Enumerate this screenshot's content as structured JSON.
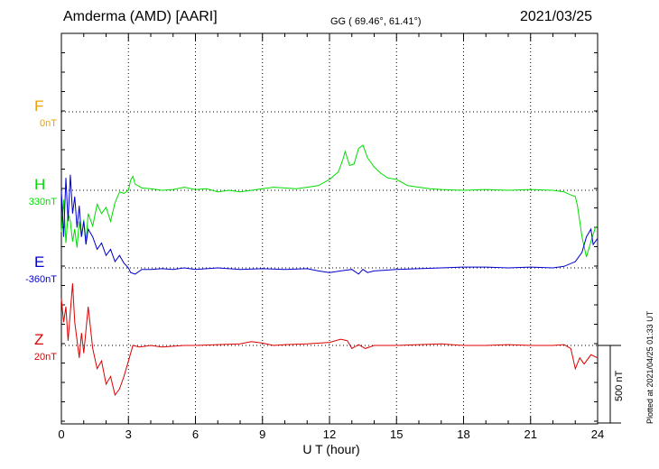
{
  "header": {
    "station": "Amderma (AMD)  [AARI]",
    "coords": "GG ( 69.46°,  61.41°)",
    "date": "2021/03/25"
  },
  "footer_note": "Plotted at 2021/04/25 01:33 UT",
  "scale_bar_label": "500 nT",
  "colors": {
    "F": "#f0a000",
    "H": "#00dd00",
    "E": "#0000cc",
    "Z": "#dd0000"
  },
  "chart_data": {
    "type": "line",
    "xlabel": "U T (hour)",
    "xlim": [
      0,
      24
    ],
    "x_ticks": [
      0,
      3,
      6,
      9,
      12,
      15,
      18,
      21,
      24
    ],
    "x_tick_labels": [
      "0",
      "3",
      "6",
      "9",
      "12",
      "15",
      "18",
      "21",
      "24"
    ],
    "grid": true,
    "units": "nT",
    "scale_bar_nT": 500,
    "components": [
      {
        "name": "F",
        "baseline_label": "0nT",
        "baseline_nT": 0,
        "points": []
      },
      {
        "name": "H",
        "baseline_label": "330nT",
        "baseline_nT": 330,
        "points": [
          [
            0,
            -270
          ],
          [
            0.1,
            -60
          ],
          [
            0.2,
            -340
          ],
          [
            0.3,
            -150
          ],
          [
            0.4,
            -200
          ],
          [
            0.5,
            -330
          ],
          [
            0.6,
            -250
          ],
          [
            0.7,
            -370
          ],
          [
            0.8,
            -200
          ],
          [
            0.9,
            -300
          ],
          [
            1.0,
            -190
          ],
          [
            1.1,
            -330
          ],
          [
            1.2,
            -150
          ],
          [
            1.4,
            -230
          ],
          [
            1.6,
            -90
          ],
          [
            1.8,
            -150
          ],
          [
            2.0,
            -110
          ],
          [
            2.2,
            -200
          ],
          [
            2.4,
            -80
          ],
          [
            2.6,
            -10
          ],
          [
            2.8,
            -20
          ],
          [
            3.0,
            0
          ],
          [
            3.1,
            65
          ],
          [
            3.2,
            90
          ],
          [
            3.3,
            40
          ],
          [
            3.6,
            15
          ],
          [
            4,
            10
          ],
          [
            4.5,
            0
          ],
          [
            5,
            5
          ],
          [
            5.5,
            20
          ],
          [
            6,
            5
          ],
          [
            6.5,
            10
          ],
          [
            7,
            -10
          ],
          [
            7.5,
            0
          ],
          [
            8,
            -10
          ],
          [
            8.5,
            0
          ],
          [
            9,
            10
          ],
          [
            9.5,
            20
          ],
          [
            10,
            15
          ],
          [
            10.5,
            10
          ],
          [
            11,
            20
          ],
          [
            11.5,
            30
          ],
          [
            12,
            70
          ],
          [
            12.4,
            120
          ],
          [
            12.6,
            200
          ],
          [
            12.7,
            250
          ],
          [
            12.9,
            160
          ],
          [
            13.1,
            170
          ],
          [
            13.3,
            270
          ],
          [
            13.5,
            290
          ],
          [
            13.7,
            210
          ],
          [
            14,
            150
          ],
          [
            14.3,
            110
          ],
          [
            14.6,
            80
          ],
          [
            15,
            70
          ],
          [
            15.5,
            30
          ],
          [
            16,
            20
          ],
          [
            16.5,
            10
          ],
          [
            17,
            5
          ],
          [
            18,
            0
          ],
          [
            19,
            5
          ],
          [
            20,
            0
          ],
          [
            21,
            5
          ],
          [
            22,
            0
          ],
          [
            22.5,
            -10
          ],
          [
            22.8,
            -30
          ],
          [
            23,
            -40
          ],
          [
            23.1,
            -100
          ],
          [
            23.3,
            -300
          ],
          [
            23.5,
            -430
          ],
          [
            23.7,
            -330
          ],
          [
            23.9,
            -240
          ],
          [
            24,
            -230
          ]
        ]
      },
      {
        "name": "E",
        "baseline_label": "-360nT",
        "baseline_nT": -360,
        "points": [
          [
            0,
            500
          ],
          [
            0.1,
            200
          ],
          [
            0.2,
            580
          ],
          [
            0.3,
            300
          ],
          [
            0.4,
            600
          ],
          [
            0.5,
            350
          ],
          [
            0.6,
            460
          ],
          [
            0.7,
            260
          ],
          [
            0.8,
            400
          ],
          [
            0.9,
            200
          ],
          [
            1.0,
            300
          ],
          [
            1.1,
            150
          ],
          [
            1.2,
            250
          ],
          [
            1.4,
            200
          ],
          [
            1.6,
            120
          ],
          [
            1.8,
            160
          ],
          [
            2.0,
            80
          ],
          [
            2.2,
            120
          ],
          [
            2.4,
            40
          ],
          [
            2.6,
            80
          ],
          [
            2.8,
            30
          ],
          [
            3.0,
            0
          ],
          [
            3.1,
            -30
          ],
          [
            3.3,
            -40
          ],
          [
            3.6,
            -10
          ],
          [
            4,
            -10
          ],
          [
            4.5,
            -5
          ],
          [
            5,
            -10
          ],
          [
            5.5,
            0
          ],
          [
            6,
            -10
          ],
          [
            7,
            0
          ],
          [
            8,
            -10
          ],
          [
            9,
            -5
          ],
          [
            10,
            -10
          ],
          [
            11,
            -5
          ],
          [
            11.5,
            -20
          ],
          [
            12,
            -30
          ],
          [
            12.5,
            -20
          ],
          [
            13,
            -10
          ],
          [
            13.3,
            -40
          ],
          [
            13.5,
            -10
          ],
          [
            13.7,
            -30
          ],
          [
            14,
            -20
          ],
          [
            15,
            -10
          ],
          [
            16,
            -5
          ],
          [
            17,
            0
          ],
          [
            18,
            5
          ],
          [
            19,
            5
          ],
          [
            20,
            0
          ],
          [
            21,
            5
          ],
          [
            22,
            0
          ],
          [
            22.5,
            10
          ],
          [
            23,
            40
          ],
          [
            23.3,
            100
          ],
          [
            23.5,
            200
          ],
          [
            23.7,
            250
          ],
          [
            23.8,
            150
          ],
          [
            24,
            190
          ]
        ]
      },
      {
        "name": "Z",
        "baseline_label": "20nT",
        "baseline_nT": 20,
        "points": [
          [
            0,
            300
          ],
          [
            0.1,
            150
          ],
          [
            0.2,
            250
          ],
          [
            0.3,
            30
          ],
          [
            0.5,
            400
          ],
          [
            0.6,
            150
          ],
          [
            0.8,
            -80
          ],
          [
            0.9,
            80
          ],
          [
            1.0,
            -50
          ],
          [
            1.2,
            250
          ],
          [
            1.4,
            -20
          ],
          [
            1.6,
            -150
          ],
          [
            1.8,
            -100
          ],
          [
            2.0,
            -250
          ],
          [
            2.2,
            -200
          ],
          [
            2.4,
            -320
          ],
          [
            2.6,
            -280
          ],
          [
            2.8,
            -200
          ],
          [
            3.0,
            -100
          ],
          [
            3.2,
            0
          ],
          [
            3.5,
            -10
          ],
          [
            4,
            0
          ],
          [
            4.5,
            -10
          ],
          [
            5,
            -5
          ],
          [
            5.5,
            0
          ],
          [
            6,
            0
          ],
          [
            7,
            5
          ],
          [
            8,
            10
          ],
          [
            8.5,
            25
          ],
          [
            9,
            15
          ],
          [
            9.5,
            0
          ],
          [
            10,
            5
          ],
          [
            11,
            10
          ],
          [
            12,
            20
          ],
          [
            12.5,
            40
          ],
          [
            12.8,
            30
          ],
          [
            13,
            -20
          ],
          [
            13.3,
            5
          ],
          [
            13.6,
            -20
          ],
          [
            14,
            0
          ],
          [
            15,
            0
          ],
          [
            16,
            5
          ],
          [
            17,
            10
          ],
          [
            18,
            0
          ],
          [
            19,
            0
          ],
          [
            20,
            5
          ],
          [
            21,
            0
          ],
          [
            22,
            0
          ],
          [
            22.5,
            5
          ],
          [
            22.8,
            -20
          ],
          [
            23,
            -150
          ],
          [
            23.2,
            -80
          ],
          [
            23.4,
            -120
          ],
          [
            23.7,
            -60
          ],
          [
            24,
            -80
          ]
        ]
      }
    ]
  }
}
